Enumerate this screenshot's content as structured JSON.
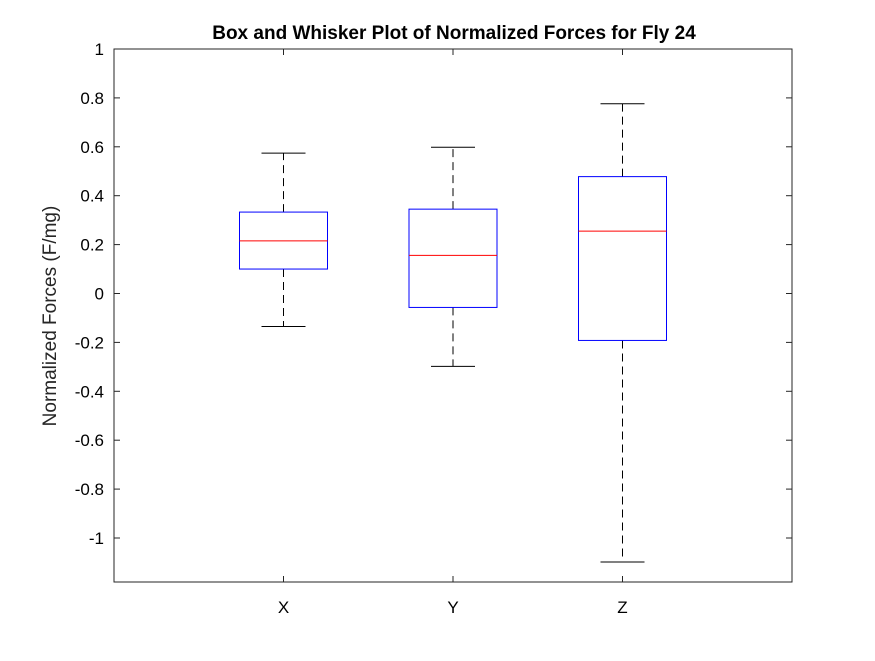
{
  "chart_data": {
    "type": "boxplot",
    "title": "Box and Whisker Plot of Normalized Forces for Fly 24",
    "xlabel": "",
    "ylabel": "Normalized Forces (F/mg)",
    "categories": [
      "X",
      "Y",
      "Z"
    ],
    "ylim": [
      -1.18,
      1.0
    ],
    "yticks": [
      1,
      0.8,
      0.6,
      0.4,
      0.2,
      0,
      -0.2,
      -0.4,
      -0.6,
      -0.8,
      -1
    ],
    "ytick_labels": [
      "1",
      "0.8",
      "0.6",
      "0.4",
      "0.2",
      "0",
      "-0.2",
      "-0.4",
      "-0.6",
      "-0.8",
      "-1"
    ],
    "boxes": [
      {
        "category": "X",
        "whisker_low": -0.135,
        "q1": 0.1,
        "median": 0.215,
        "q3": 0.333,
        "whisker_high": 0.574
      },
      {
        "category": "Y",
        "whisker_low": -0.298,
        "q1": -0.057,
        "median": 0.156,
        "q3": 0.345,
        "whisker_high": 0.598
      },
      {
        "category": "Z",
        "whisker_low": -1.098,
        "q1": -0.192,
        "median": 0.255,
        "q3": 0.478,
        "whisker_high": 0.776
      }
    ],
    "grid": false,
    "colors": {
      "box": "#0000ff",
      "median": "#ff0000",
      "whisker": "#000000",
      "axes": "#262626"
    }
  }
}
